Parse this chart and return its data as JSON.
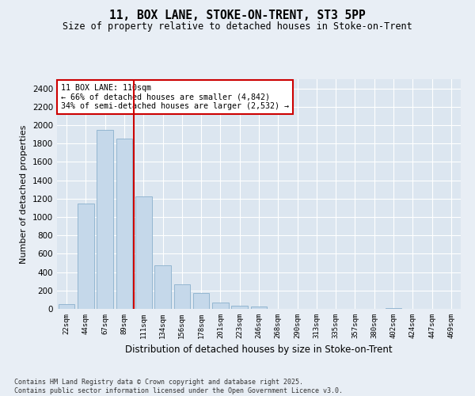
{
  "title": "11, BOX LANE, STOKE-ON-TRENT, ST3 5PP",
  "subtitle": "Size of property relative to detached houses in Stoke-on-Trent",
  "xlabel": "Distribution of detached houses by size in Stoke-on-Trent",
  "ylabel": "Number of detached properties",
  "bar_color": "#c5d8ea",
  "bar_edge_color": "#8ab0cc",
  "annotation_box_color": "#cc0000",
  "vline_color": "#cc0000",
  "background_color": "#dce6f0",
  "grid_color": "#ffffff",
  "annotation_text": "11 BOX LANE: 110sqm\n← 66% of detached houses are smaller (4,842)\n34% of semi-detached houses are larger (2,532) →",
  "property_size": 110,
  "categories": [
    "22sqm",
    "44sqm",
    "67sqm",
    "89sqm",
    "111sqm",
    "134sqm",
    "156sqm",
    "178sqm",
    "201sqm",
    "223sqm",
    "246sqm",
    "268sqm",
    "290sqm",
    "313sqm",
    "335sqm",
    "357sqm",
    "380sqm",
    "402sqm",
    "424sqm",
    "447sqm",
    "469sqm"
  ],
  "values": [
    50,
    1150,
    1950,
    1850,
    1225,
    475,
    265,
    170,
    65,
    35,
    25,
    0,
    0,
    0,
    0,
    0,
    0,
    10,
    0,
    0,
    0
  ],
  "ylim": [
    0,
    2500
  ],
  "yticks": [
    0,
    200,
    400,
    600,
    800,
    1000,
    1200,
    1400,
    1600,
    1800,
    2000,
    2200,
    2400
  ],
  "vline_x_index": 4,
  "footnote": "Contains HM Land Registry data © Crown copyright and database right 2025.\nContains public sector information licensed under the Open Government Licence v3.0.",
  "figsize": [
    6.0,
    5.0
  ],
  "dpi": 100
}
